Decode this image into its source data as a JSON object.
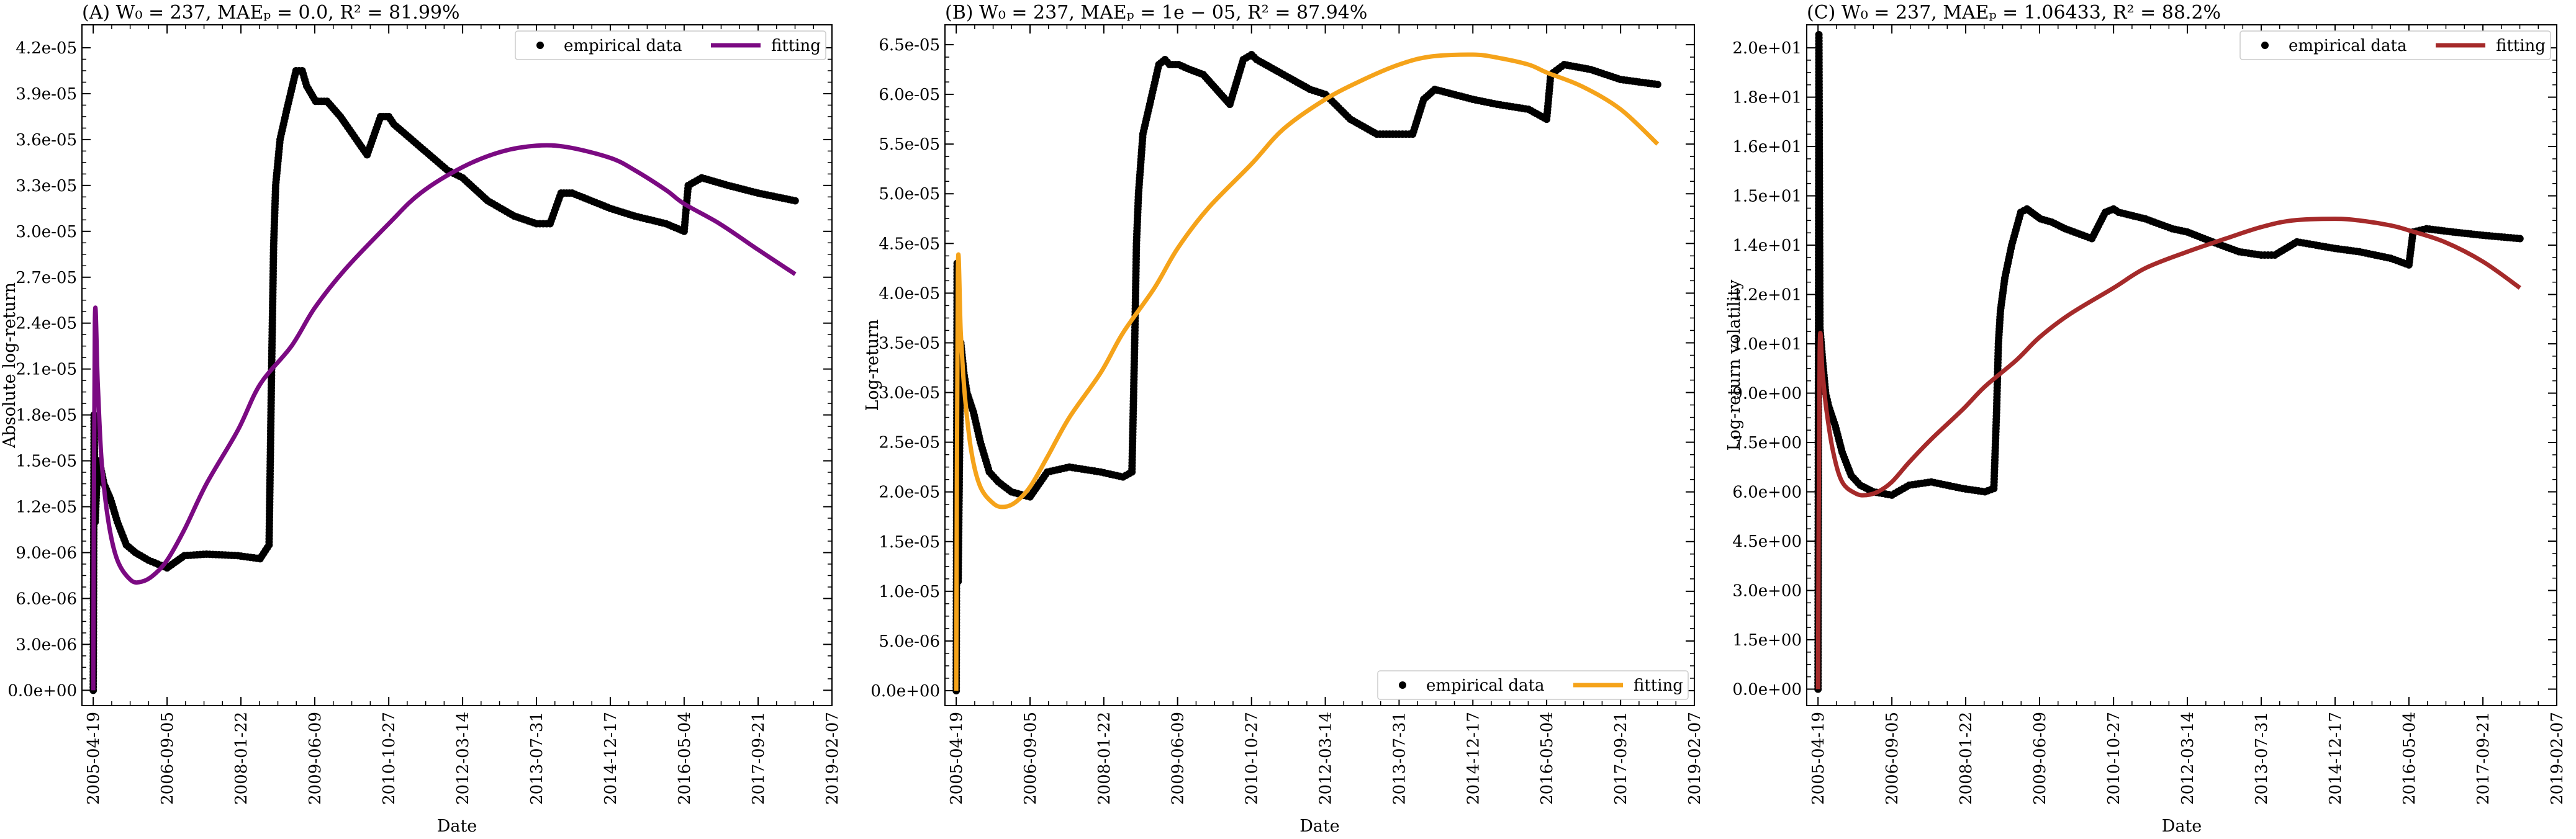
{
  "chart_data": [
    {
      "type": "line",
      "title": "(A) W₀ = 237, MAEₚ = 0.0, R² = 81.99%",
      "xlabel": "Date",
      "ylabel": "Absolute log-return",
      "x_ticks": [
        "2005-04-19",
        "2006-09-05",
        "2008-01-22",
        "2009-06-09",
        "2010-10-27",
        "2012-03-14",
        "2013-07-31",
        "2014-12-17",
        "2016-05-04",
        "2017-09-21",
        "2019-02-07"
      ],
      "xlim": [
        "2005-02-01",
        "2019-02-07"
      ],
      "y_ticks": [
        "0.0e+00",
        "3.0e-06",
        "6.0e-06",
        "9.0e-06",
        "1.2e-05",
        "1.5e-05",
        "1.8e-05",
        "2.1e-05",
        "2.4e-05",
        "2.7e-05",
        "3.0e-05",
        "3.3e-05",
        "3.6e-05",
        "3.9e-05",
        "4.2e-05"
      ],
      "ylim": [
        -1e-06,
        4.35e-05
      ],
      "legend": {
        "position": "top-right",
        "entries": [
          "empirical data",
          "fitting"
        ]
      },
      "series": [
        {
          "name": "empirical data",
          "kind": "scatter",
          "color": "#000000",
          "x": [
            "2005-04-19",
            "2005-04-25",
            "2005-05-02",
            "2005-05-20",
            "2005-06-10",
            "2005-07-01",
            "2005-08-15",
            "2005-10-01",
            "2005-12-01",
            "2006-02-01",
            "2006-05-01",
            "2006-09-05",
            "2007-01-01",
            "2007-06-01",
            "2008-01-01",
            "2008-06-01",
            "2008-08-01",
            "2008-08-20",
            "2008-09-01",
            "2008-09-15",
            "2008-10-15",
            "2008-12-01",
            "2009-02-01",
            "2009-03-15",
            "2009-04-15",
            "2009-06-15",
            "2009-09-01",
            "2009-12-01",
            "2010-06-01",
            "2010-09-01",
            "2010-10-27",
            "2010-12-01",
            "2011-06-01",
            "2011-12-01",
            "2012-03-14",
            "2012-09-01",
            "2013-03-01",
            "2013-07-31",
            "2013-11-01",
            "2014-01-15",
            "2014-04-01",
            "2014-12-17",
            "2015-06-01",
            "2016-01-01",
            "2016-05-04",
            "2016-06-01",
            "2016-09-01",
            "2017-03-01",
            "2017-09-21",
            "2018-06-01"
          ],
          "y": [
            0.0,
            1.8e-05,
            1.1e-05,
            1.5e-05,
            1.45e-05,
            1.35e-05,
            1.25e-05,
            1.1e-05,
            9.5e-06,
            9e-06,
            8.5e-06,
            8e-06,
            8.8e-06,
            8.9e-06,
            8.8e-06,
            8.6e-06,
            9.5e-06,
            2.2e-05,
            2.9e-05,
            3.3e-05,
            3.6e-05,
            3.8e-05,
            4.05e-05,
            4.05e-05,
            3.95e-05,
            3.85e-05,
            3.85e-05,
            3.75e-05,
            3.5e-05,
            3.75e-05,
            3.75e-05,
            3.7e-05,
            3.55e-05,
            3.4e-05,
            3.35e-05,
            3.2e-05,
            3.1e-05,
            3.05e-05,
            3.05e-05,
            3.25e-05,
            3.25e-05,
            3.15e-05,
            3.1e-05,
            3.05e-05,
            3e-05,
            3.3e-05,
            3.35e-05,
            3.3e-05,
            3.25e-05,
            3.2e-05
          ]
        },
        {
          "name": "fitting",
          "kind": "line",
          "color": "#7b0a82",
          "x": [
            "2005-04-19",
            "2005-04-30",
            "2005-05-20",
            "2005-06-15",
            "2005-08-01",
            "2005-10-01",
            "2006-01-01",
            "2006-03-15",
            "2006-06-01",
            "2006-09-05",
            "2007-01-01",
            "2007-06-01",
            "2008-01-01",
            "2008-06-01",
            "2009-01-01",
            "2009-06-09",
            "2010-01-01",
            "2010-10-27",
            "2011-06-01",
            "2012-03-14",
            "2012-12-01",
            "2013-07-31",
            "2014-03-01",
            "2014-12-17",
            "2015-06-01",
            "2016-01-01",
            "2016-05-04",
            "2017-01-01",
            "2017-09-21",
            "2018-06-01"
          ],
          "y": [
            0.0,
            2.4e-05,
            2e-05,
            1.5e-05,
            1.1e-05,
            8.5e-06,
            7.2e-06,
            7.1e-06,
            7.5e-06,
            8.5e-06,
            1.05e-05,
            1.35e-05,
            1.7e-05,
            2e-05,
            2.25e-05,
            2.5e-05,
            2.75e-05,
            3.05e-05,
            3.25e-05,
            3.42e-05,
            3.52e-05,
            3.56e-05,
            3.55e-05,
            3.48e-05,
            3.4e-05,
            3.27e-05,
            3.18e-05,
            3.05e-05,
            2.88e-05,
            2.72e-05
          ]
        }
      ]
    },
    {
      "type": "line",
      "title": "(B) W₀ = 237, MAEₚ = 1e − 05, R² = 87.94%",
      "xlabel": "Date",
      "ylabel": "Log-return",
      "x_ticks": [
        "2005-04-19",
        "2006-09-05",
        "2008-01-22",
        "2009-06-09",
        "2010-10-27",
        "2012-03-14",
        "2013-07-31",
        "2014-12-17",
        "2016-05-04",
        "2017-09-21",
        "2019-02-07"
      ],
      "xlim": [
        "2005-02-01",
        "2019-02-07"
      ],
      "y_ticks": [
        "0.0e+00",
        "5.0e-06",
        "1.0e-05",
        "1.5e-05",
        "2.0e-05",
        "2.5e-05",
        "3.0e-05",
        "3.5e-05",
        "4.0e-05",
        "4.5e-05",
        "5.0e-05",
        "5.5e-05",
        "6.0e-05",
        "6.5e-05"
      ],
      "ylim": [
        -1.5e-06,
        6.7e-05
      ],
      "legend": {
        "position": "bottom-right",
        "entries": [
          "empirical data",
          "fitting"
        ]
      },
      "series": [
        {
          "name": "empirical data",
          "kind": "scatter",
          "color": "#000000",
          "x": [
            "2005-04-19",
            "2005-04-25",
            "2005-05-02",
            "2005-05-20",
            "2005-06-10",
            "2005-07-01",
            "2005-08-15",
            "2005-10-01",
            "2005-12-01",
            "2006-02-01",
            "2006-05-01",
            "2006-09-05",
            "2007-01-01",
            "2007-06-01",
            "2008-01-01",
            "2008-06-01",
            "2008-08-01",
            "2008-08-20",
            "2008-09-01",
            "2008-09-15",
            "2008-10-15",
            "2008-12-01",
            "2009-02-01",
            "2009-03-15",
            "2009-04-15",
            "2009-06-15",
            "2009-09-01",
            "2009-12-01",
            "2010-06-01",
            "2010-09-01",
            "2010-10-27",
            "2010-12-01",
            "2011-06-01",
            "2011-12-01",
            "2012-03-14",
            "2012-09-01",
            "2013-03-01",
            "2013-07-31",
            "2013-11-01",
            "2014-01-15",
            "2014-04-01",
            "2014-12-17",
            "2015-06-01",
            "2016-01-01",
            "2016-05-04",
            "2016-06-01",
            "2016-09-01",
            "2017-03-01",
            "2017-09-21",
            "2018-06-01"
          ],
          "y": [
            0.0,
            4.3e-05,
            1.1e-05,
            3.5e-05,
            3.2e-05,
            3e-05,
            2.8e-05,
            2.5e-05,
            2.2e-05,
            2.1e-05,
            2e-05,
            1.95e-05,
            2.2e-05,
            2.25e-05,
            2.2e-05,
            2.15e-05,
            2.2e-05,
            3.5e-05,
            4.5e-05,
            5e-05,
            5.6e-05,
            5.9e-05,
            6.3e-05,
            6.35e-05,
            6.3e-05,
            6.3e-05,
            6.25e-05,
            6.2e-05,
            5.9e-05,
            6.35e-05,
            6.4e-05,
            6.35e-05,
            6.2e-05,
            6.05e-05,
            6e-05,
            5.75e-05,
            5.6e-05,
            5.6e-05,
            5.6e-05,
            5.95e-05,
            6.05e-05,
            5.95e-05,
            5.9e-05,
            5.85e-05,
            5.75e-05,
            6.2e-05,
            6.3e-05,
            6.25e-05,
            6.15e-05,
            6.1e-05
          ]
        },
        {
          "name": "fitting",
          "kind": "line",
          "color": "#f5a31a",
          "x": [
            "2005-04-19",
            "2005-04-30",
            "2005-05-20",
            "2005-06-15",
            "2005-08-01",
            "2005-10-01",
            "2006-01-01",
            "2006-03-15",
            "2006-06-01",
            "2006-09-05",
            "2007-01-01",
            "2007-06-01",
            "2008-01-01",
            "2008-06-01",
            "2009-01-01",
            "2009-06-09",
            "2010-01-01",
            "2010-10-27",
            "2011-06-01",
            "2012-03-14",
            "2012-12-01",
            "2013-07-31",
            "2014-03-01",
            "2014-12-17",
            "2015-06-01",
            "2016-01-01",
            "2016-05-04",
            "2017-01-01",
            "2017-09-21",
            "2018-06-01"
          ],
          "y": [
            0.0,
            4.2e-05,
            3.6e-05,
            3e-05,
            2.4e-05,
            2.05e-05,
            1.88e-05,
            1.85e-05,
            1.9e-05,
            2.05e-05,
            2.35e-05,
            2.75e-05,
            3.2e-05,
            3.6e-05,
            4.05e-05,
            4.45e-05,
            4.85e-05,
            5.3e-05,
            5.65e-05,
            5.95e-05,
            6.15e-05,
            6.3e-05,
            6.38e-05,
            6.4e-05,
            6.37e-05,
            6.3e-05,
            6.22e-05,
            6.08e-05,
            5.85e-05,
            5.5e-05
          ]
        }
      ]
    },
    {
      "type": "line",
      "title": "(C) W₀ = 237, MAEₚ = 1.06433, R² = 88.2%",
      "xlabel": "Date",
      "ylabel": "Log-return volatility",
      "x_ticks": [
        "2005-04-19",
        "2006-09-05",
        "2008-01-22",
        "2009-06-09",
        "2010-10-27",
        "2012-03-14",
        "2013-07-31",
        "2014-12-17",
        "2016-05-04",
        "2017-09-21",
        "2019-02-07"
      ],
      "xlim": [
        "2005-02-01",
        "2019-02-07"
      ],
      "y_ticks": [
        "0.0e+00",
        "1.5e+00",
        "3.0e+00",
        "4.5e+00",
        "6.0e+00",
        "7.5e+00",
        "9.0e+00",
        "1.0e+01",
        "1.2e+01",
        "1.4e+01",
        "1.5e+01",
        "1.6e+01",
        "1.8e+01",
        "2.0e+01"
      ],
      "y_tick_values": [
        0.0,
        1.5,
        3.0,
        4.5,
        6.0,
        7.5,
        9.0,
        10.5,
        12.0,
        13.5,
        15.0,
        16.5,
        18.0,
        19.5
      ],
      "ylim": [
        -0.5,
        20.2
      ],
      "legend": {
        "position": "top-right",
        "entries": [
          "empirical data",
          "fitting"
        ]
      },
      "series": [
        {
          "name": "empirical data",
          "kind": "scatter",
          "color": "#000000",
          "x": [
            "2005-04-19",
            "2005-04-25",
            "2005-05-02",
            "2005-05-20",
            "2005-06-10",
            "2005-07-01",
            "2005-08-15",
            "2005-10-01",
            "2005-12-01",
            "2006-02-01",
            "2006-05-01",
            "2006-09-05",
            "2007-01-01",
            "2007-06-01",
            "2008-01-01",
            "2008-06-01",
            "2008-08-01",
            "2008-08-20",
            "2008-09-01",
            "2008-09-15",
            "2008-10-15",
            "2008-12-01",
            "2009-02-01",
            "2009-03-15",
            "2009-04-15",
            "2009-06-15",
            "2009-09-01",
            "2009-12-01",
            "2010-06-01",
            "2010-09-01",
            "2010-10-27",
            "2010-12-01",
            "2011-06-01",
            "2011-12-01",
            "2012-03-14",
            "2012-09-01",
            "2013-03-01",
            "2013-07-31",
            "2013-11-01",
            "2014-01-15",
            "2014-04-01",
            "2014-12-17",
            "2015-06-01",
            "2016-01-01",
            "2016-05-04",
            "2016-06-01",
            "2016-09-01",
            "2017-03-01",
            "2017-09-21",
            "2018-06-01"
          ],
          "y": [
            0.0,
            19.9,
            11.0,
            10.0,
            9.0,
            8.6,
            8.0,
            7.2,
            6.5,
            6.2,
            6.0,
            5.9,
            6.2,
            6.3,
            6.1,
            6.0,
            6.1,
            8.5,
            10.5,
            11.5,
            12.5,
            13.5,
            14.5,
            14.6,
            14.5,
            14.3,
            14.2,
            14.0,
            13.7,
            14.5,
            14.6,
            14.5,
            14.3,
            14.0,
            13.9,
            13.6,
            13.3,
            13.2,
            13.2,
            13.4,
            13.6,
            13.4,
            13.3,
            13.1,
            12.9,
            13.9,
            14.0,
            13.9,
            13.8,
            13.7
          ]
        },
        {
          "name": "fitting",
          "kind": "line",
          "color": "#a52a2a",
          "x": [
            "2005-04-19",
            "2005-04-30",
            "2005-05-20",
            "2005-06-15",
            "2005-08-01",
            "2005-10-01",
            "2006-01-01",
            "2006-03-15",
            "2006-06-01",
            "2006-09-05",
            "2007-01-01",
            "2007-06-01",
            "2008-01-01",
            "2008-06-01",
            "2009-01-01",
            "2009-06-09",
            "2010-01-01",
            "2010-10-27",
            "2011-06-01",
            "2012-03-14",
            "2012-12-01",
            "2013-07-31",
            "2014-03-01",
            "2014-12-17",
            "2015-06-01",
            "2016-01-01",
            "2016-05-04",
            "2017-01-01",
            "2017-09-21",
            "2018-06-01"
          ],
          "y": [
            0.0,
            10.2,
            9.6,
            8.5,
            7.2,
            6.3,
            5.95,
            5.9,
            6.0,
            6.3,
            6.9,
            7.6,
            8.5,
            9.2,
            10.0,
            10.7,
            11.4,
            12.2,
            12.8,
            13.3,
            13.7,
            14.05,
            14.25,
            14.3,
            14.25,
            14.1,
            13.95,
            13.6,
            13.0,
            12.2
          ]
        }
      ]
    }
  ]
}
